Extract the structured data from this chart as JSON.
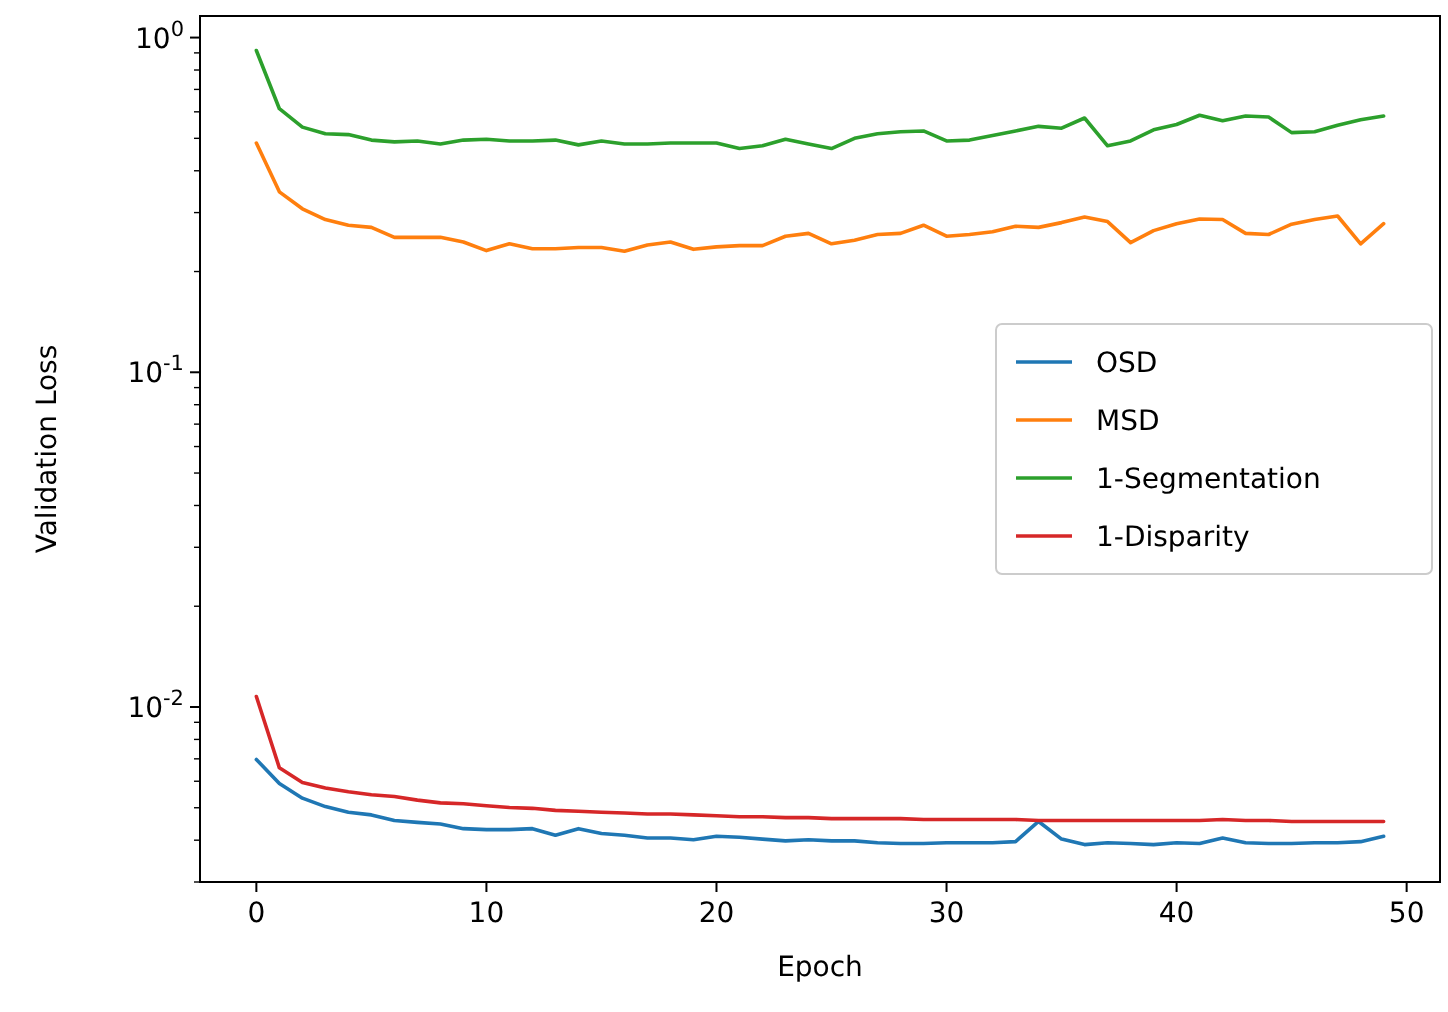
{
  "chart_data": {
    "type": "line",
    "xlabel": "Epoch",
    "ylabel": "Validation Loss",
    "log": "y",
    "grid": false,
    "legend": "center right",
    "line_style": "solid",
    "marker": "none",
    "x": [
      0,
      1,
      2,
      3,
      4,
      5,
      6,
      7,
      8,
      9,
      10,
      11,
      12,
      13,
      14,
      15,
      16,
      17,
      18,
      19,
      20,
      21,
      22,
      23,
      24,
      25,
      26,
      27,
      28,
      29,
      30,
      31,
      32,
      33,
      34,
      35,
      36,
      37,
      38,
      39,
      40,
      41,
      42,
      43,
      44,
      45,
      46,
      47,
      48,
      49
    ],
    "xlim": [
      -2.45,
      51.45
    ],
    "xticks": [
      0,
      10,
      20,
      30,
      40,
      50
    ],
    "ylim": [
      0.003,
      1.16
    ],
    "yticks": [
      {
        "value": 1,
        "label": "10$^{0}$"
      },
      {
        "value": 0.1,
        "label": "10$^{-1}$"
      },
      {
        "value": 0.01,
        "label": "10$^{-2}$"
      },
      {
        "value": 0.003,
        "label": null
      },
      {
        "value": 0.004,
        "label": null
      },
      {
        "value": 0.005,
        "label": null
      },
      {
        "value": 0.006,
        "label": null
      },
      {
        "value": 0.007,
        "label": null
      },
      {
        "value": 0.008,
        "label": null
      },
      {
        "value": 0.009,
        "label": null
      },
      {
        "value": 0.02,
        "label": null
      },
      {
        "value": 0.03,
        "label": null
      },
      {
        "value": 0.04,
        "label": null
      },
      {
        "value": 0.05,
        "label": null
      },
      {
        "value": 0.06,
        "label": null
      },
      {
        "value": 0.07,
        "label": null
      },
      {
        "value": 0.08,
        "label": null
      },
      {
        "value": 0.09,
        "label": null
      },
      {
        "value": 0.2,
        "label": null
      },
      {
        "value": 0.3,
        "label": null
      },
      {
        "value": 0.4,
        "label": null
      },
      {
        "value": 0.5,
        "label": null
      },
      {
        "value": 0.6,
        "label": null
      },
      {
        "value": 0.7,
        "label": null
      },
      {
        "value": 0.8,
        "label": null
      },
      {
        "value": 0.9,
        "label": null
      }
    ],
    "series": [
      {
        "name": "OSD",
        "color": "#1f77b4",
        "values": [
          0.00697,
          0.00591,
          0.00534,
          0.00504,
          0.00485,
          0.00476,
          0.00458,
          0.00452,
          0.00447,
          0.00433,
          0.0043,
          0.0043,
          0.00433,
          0.00414,
          0.00433,
          0.00419,
          0.00414,
          0.00406,
          0.00406,
          0.00401,
          0.00411,
          0.00408,
          0.00403,
          0.00398,
          0.00401,
          0.00398,
          0.00398,
          0.00393,
          0.00391,
          0.00391,
          0.00393,
          0.00393,
          0.00393,
          0.00396,
          0.00455,
          0.00403,
          0.00388,
          0.00393,
          0.00391,
          0.00388,
          0.00393,
          0.00391,
          0.00406,
          0.00393,
          0.00391,
          0.00391,
          0.00393,
          0.00393,
          0.00396,
          0.00411
        ]
      },
      {
        "name": "MSD",
        "color": "#ff7f0e",
        "values": [
          0.484,
          0.346,
          0.308,
          0.286,
          0.275,
          0.271,
          0.253,
          0.253,
          0.253,
          0.245,
          0.231,
          0.242,
          0.234,
          0.234,
          0.236,
          0.236,
          0.23,
          0.24,
          0.245,
          0.233,
          0.237,
          0.239,
          0.239,
          0.255,
          0.26,
          0.242,
          0.248,
          0.258,
          0.26,
          0.275,
          0.255,
          0.258,
          0.263,
          0.273,
          0.271,
          0.28,
          0.291,
          0.282,
          0.244,
          0.265,
          0.278,
          0.287,
          0.286,
          0.26,
          0.258,
          0.277,
          0.286,
          0.293,
          0.242,
          0.278
        ]
      },
      {
        "name": "1-Segmentation",
        "color": "#2ca02c",
        "values": [
          0.915,
          0.613,
          0.54,
          0.516,
          0.513,
          0.494,
          0.488,
          0.491,
          0.481,
          0.494,
          0.497,
          0.491,
          0.491,
          0.494,
          0.478,
          0.491,
          0.481,
          0.481,
          0.484,
          0.484,
          0.484,
          0.466,
          0.475,
          0.497,
          0.481,
          0.466,
          0.5,
          0.516,
          0.523,
          0.526,
          0.491,
          0.494,
          0.51,
          0.526,
          0.543,
          0.536,
          0.575,
          0.475,
          0.491,
          0.53,
          0.55,
          0.586,
          0.564,
          0.583,
          0.579,
          0.52,
          0.523,
          0.547,
          0.568,
          0.583
        ]
      },
      {
        "name": "1-Disparity",
        "color": "#d62728",
        "values": [
          0.01075,
          0.00658,
          0.00595,
          0.00573,
          0.00558,
          0.00547,
          0.0054,
          0.00527,
          0.00517,
          0.00514,
          0.00507,
          0.00501,
          0.00498,
          0.00491,
          0.00488,
          0.00485,
          0.00482,
          0.00479,
          0.00479,
          0.00476,
          0.00473,
          0.0047,
          0.0047,
          0.00467,
          0.00467,
          0.00464,
          0.00464,
          0.00464,
          0.00464,
          0.00461,
          0.00461,
          0.00461,
          0.00461,
          0.00461,
          0.00458,
          0.00458,
          0.00458,
          0.00458,
          0.00458,
          0.00458,
          0.00458,
          0.00458,
          0.00461,
          0.00458,
          0.00458,
          0.00455,
          0.00455,
          0.00455,
          0.00455,
          0.00455
        ]
      }
    ]
  }
}
